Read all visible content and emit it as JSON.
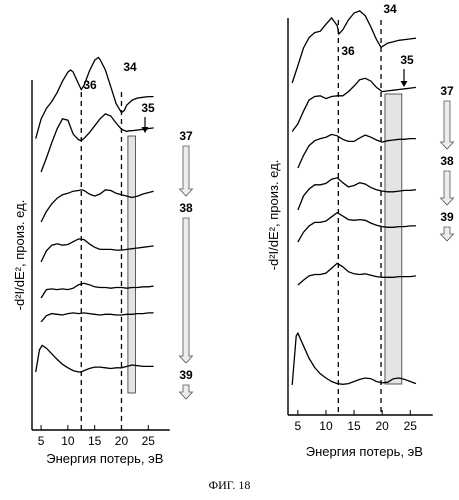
{
  "caption": "ФИГ. 18",
  "chart_data": [
    {
      "type": "line",
      "xlabel": "Энергия потерь, эВ",
      "ylabel": "-d²I/dE², произ. ед.",
      "xticks": [
        5,
        10,
        15,
        20,
        25
      ],
      "xlim": [
        2,
        29
      ],
      "stacked": true,
      "markers": [
        {
          "label": "36",
          "x": 12.5
        },
        {
          "label": "34",
          "x": 20
        }
      ],
      "band": {
        "label": "35",
        "x_start": 21.2,
        "x_end": 22.6
      },
      "arrows": [
        {
          "label": "37",
          "from_trace": 1,
          "to_trace": 3
        },
        {
          "label": "38",
          "from_trace": 3,
          "to_trace": 7
        },
        {
          "label": "39",
          "from_trace": 7,
          "to_trace": 7
        }
      ],
      "series": [
        {
          "x": [
            4,
            5,
            6,
            7,
            8,
            9,
            10,
            10.5,
            11,
            12,
            12.5,
            13,
            14,
            15,
            15.7,
            16,
            17,
            18,
            19,
            20,
            20.5,
            21,
            22,
            23,
            24,
            25,
            26
          ],
          "y": [
            0.2,
            3,
            4.5,
            5.5,
            6.8,
            8.4,
            9.7,
            10,
            9.7,
            8,
            7.2,
            7.8,
            9.8,
            11.4,
            11.8,
            11.5,
            10,
            7.6,
            5.2,
            3.9,
            4.2,
            5,
            5.7,
            6,
            6.1,
            6.2,
            6.2
          ]
        },
        {
          "x": [
            5,
            6,
            7,
            8,
            9,
            10,
            11,
            12,
            12.5,
            13,
            14,
            15,
            16,
            17,
            18,
            19,
            20,
            21,
            21.5,
            22,
            23,
            24,
            25,
            26
          ],
          "y": [
            0,
            2,
            4.2,
            6.2,
            7.6,
            7.4,
            5.4,
            4.6,
            4.5,
            4.8,
            5.6,
            6.6,
            7.6,
            8.3,
            8,
            7,
            6.1,
            5.8,
            5.9,
            5.9,
            6,
            6.1,
            6.2,
            6.3
          ]
        },
        {
          "x": [
            5,
            6,
            7,
            8,
            9,
            10,
            11,
            12,
            12.5,
            13,
            14,
            15,
            16,
            17,
            18,
            19,
            20,
            21,
            22,
            23,
            24,
            25,
            26
          ],
          "y": [
            0,
            1.5,
            2.6,
            3.4,
            3.9,
            4.1,
            4.4,
            4.5,
            4.6,
            4.5,
            4,
            3.7,
            4,
            4.6,
            4.5,
            4.1,
            3.9,
            3.7,
            3.5,
            3.7,
            4,
            4.2,
            4.4
          ]
        },
        {
          "x": [
            5,
            6,
            7,
            8,
            9,
            10,
            11,
            12,
            13,
            14,
            15,
            16,
            17,
            18,
            19,
            20,
            21,
            22,
            23,
            24,
            25,
            26
          ],
          "y": [
            0,
            1.6,
            2.4,
            2.6,
            2.4,
            2.5,
            2.9,
            3.3,
            3.2,
            2.6,
            2.1,
            1.8,
            1.8,
            1.8,
            1.7,
            1.7,
            1.8,
            1.9,
            2,
            2.1,
            2.2,
            2.3
          ]
        },
        {
          "x": [
            5,
            6,
            7,
            8,
            9,
            10,
            11,
            12,
            13,
            14,
            15,
            16,
            17,
            18,
            19,
            20,
            21,
            22,
            23,
            24,
            25,
            26
          ],
          "y": [
            0,
            1.2,
            1.3,
            1.2,
            1.3,
            1.2,
            1.4,
            1.9,
            2.1,
            1.9,
            1.6,
            1.5,
            1.5,
            1.4,
            1.5,
            1.5,
            1.4,
            1.5,
            1.5,
            1.6,
            1.6,
            1.7
          ]
        },
        {
          "x": [
            5,
            6,
            7,
            8,
            9,
            10,
            11,
            12,
            13,
            14,
            15,
            16,
            17,
            18,
            19,
            20,
            21,
            22,
            23,
            24,
            25,
            26
          ],
          "y": [
            0,
            0.9,
            1.2,
            1.1,
            1,
            1.2,
            1.3,
            1.2,
            1.3,
            1.2,
            1.1,
            1,
            1.1,
            1.1,
            1,
            1,
            1.1,
            1.1,
            1.2,
            1.2,
            1.3,
            1.3
          ]
        },
        {
          "x": [
            4,
            4.7,
            5.2,
            6,
            7,
            8,
            9,
            10,
            11,
            12,
            12.5,
            13,
            14,
            15,
            16,
            17,
            18,
            19,
            20,
            21,
            22,
            23,
            24,
            25,
            26
          ],
          "y": [
            0,
            3.2,
            3.8,
            3.4,
            2.6,
            1.8,
            1.1,
            0.6,
            0.2,
            0,
            0,
            0.2,
            0.5,
            0.7,
            0.7,
            0.6,
            0.5,
            0.6,
            0.6,
            0.8,
            1,
            0.9,
            0.8,
            0.8,
            0.8
          ]
        }
      ]
    },
    {
      "type": "line",
      "xlabel": "Энергия потерь, эВ",
      "ylabel": "-d²I/dE², произ. ед.",
      "xticks": [
        5,
        10,
        15,
        20,
        25
      ],
      "xlim": [
        2,
        29
      ],
      "stacked": true,
      "markers": [
        {
          "label": "36",
          "x": 12.2
        },
        {
          "label": "34",
          "x": 19.8
        }
      ],
      "band": {
        "label": "35",
        "x_start": 20.5,
        "x_end": 23.5
      },
      "arrows": [
        {
          "label": "37",
          "from_trace": 1,
          "to_trace": 2
        },
        {
          "label": "38",
          "from_trace": 3,
          "to_trace": 4
        },
        {
          "label": "39",
          "from_trace": 5,
          "to_trace": 9
        }
      ],
      "series": [
        {
          "x": [
            4,
            5,
            6,
            7,
            8,
            9,
            10,
            11,
            12,
            12.3,
            13,
            14,
            15,
            16,
            17,
            18,
            19,
            19.8,
            20,
            21,
            22,
            23,
            24,
            25,
            26
          ],
          "y": [
            1,
            3.5,
            6,
            7.5,
            8.2,
            8.4,
            9.4,
            10.3,
            9.2,
            8,
            8.6,
            10,
            11,
            11.3,
            10.6,
            9,
            7.2,
            6.1,
            6.2,
            6.7,
            6.9,
            7.1,
            7.2,
            7.3,
            7.4
          ]
        },
        {
          "x": [
            4,
            5,
            6,
            7,
            8,
            9,
            10,
            11,
            12,
            13,
            14,
            15,
            16,
            17,
            18,
            19,
            20,
            21,
            22,
            23,
            24,
            25,
            26
          ],
          "y": [
            0.5,
            1.6,
            3.4,
            5,
            5.5,
            5.6,
            5.2,
            5.5,
            5.6,
            5.6,
            6.2,
            7,
            7.9,
            8.1,
            7.7,
            6.8,
            6.2,
            6.3,
            6.4,
            6.5,
            6.6,
            6.7,
            6.8
          ]
        },
        {
          "x": [
            5,
            6,
            7,
            8,
            9,
            10,
            11,
            12,
            13,
            14,
            15,
            16,
            17,
            18,
            19,
            20,
            21,
            22,
            23,
            24,
            25,
            26
          ],
          "y": [
            0,
            1.8,
            3.2,
            3.9,
            4.2,
            4.4,
            4.8,
            4.6,
            4.1,
            3.8,
            3.8,
            4.3,
            4.7,
            4.4,
            4,
            3.7,
            3.9,
            4,
            4.1,
            4.1,
            4.2,
            4.2
          ]
        },
        {
          "x": [
            5,
            6,
            7,
            8,
            9,
            10,
            11,
            12,
            13,
            14,
            15,
            16,
            17,
            18,
            19,
            20,
            21,
            22,
            23,
            24,
            25,
            26
          ],
          "y": [
            0,
            2,
            3,
            3.6,
            3.6,
            3.8,
            4.4,
            4.6,
            3.9,
            3.3,
            3.5,
            3.9,
            3.7,
            3.2,
            2.9,
            2.7,
            2.6,
            2.6,
            2.7,
            2.8,
            2.8,
            2.9
          ]
        },
        {
          "x": [
            5,
            6,
            7,
            8,
            9,
            10,
            11,
            12,
            13,
            14,
            15,
            16,
            17,
            18,
            19,
            20,
            21,
            22,
            23,
            24,
            25,
            26
          ],
          "y": [
            0,
            1.4,
            2.3,
            2.8,
            2.8,
            3,
            3.6,
            4.2,
            3.7,
            3.2,
            3.1,
            3.2,
            3.1,
            2.7,
            2.4,
            2.2,
            2.1,
            2.1,
            2.2,
            2.2,
            2.3,
            2.3
          ]
        },
        {
          "x": [
            5,
            6,
            7,
            8,
            9,
            10,
            11,
            12,
            13,
            14,
            15,
            16,
            17,
            18,
            19,
            20,
            21,
            22,
            23,
            24,
            25,
            26
          ],
          "y": [
            0,
            0.7,
            1.3,
            1.5,
            1.5,
            1.7,
            2.4,
            3.1,
            2.6,
            1.9,
            1.6,
            1.5,
            1.6,
            1.4,
            1.2,
            1.1,
            1.1,
            1.1,
            1.2,
            1.2,
            1.2,
            1.3
          ]
        },
        {
          "x": [
            4,
            4.7,
            5,
            6,
            7,
            8,
            9,
            10,
            11,
            12,
            13,
            14,
            15,
            16,
            17,
            18,
            19,
            20,
            21,
            22,
            23,
            24,
            25,
            26
          ],
          "y": [
            0,
            7,
            7.4,
            5.6,
            3.8,
            2.5,
            1.6,
            1,
            0.5,
            0.2,
            0.1,
            0.2,
            0.5,
            0.8,
            1,
            0.9,
            0.5,
            0.3,
            0.4,
            0.9,
            1,
            0.8,
            0.5,
            0.2
          ]
        }
      ]
    }
  ]
}
